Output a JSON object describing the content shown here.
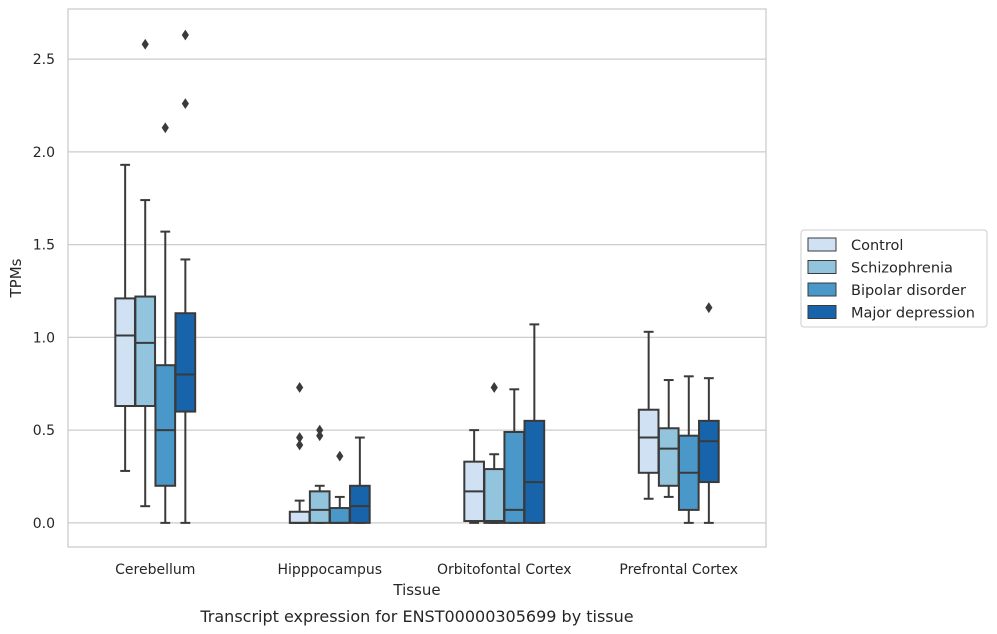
{
  "caption": "Transcript expression for ENST00000305699 by tissue",
  "colors": {
    "Control": "#cfe1f2",
    "Schizophrenia": "#93c4de",
    "Bipolar disorder": "#4a98c9",
    "Major depression": "#1764ab",
    "outline": "#3a3a3a",
    "grid": "#cccccc"
  },
  "chart_data": {
    "type": "box",
    "xlabel": "Tissue",
    "ylabel": "TPMs",
    "ylim": [
      -0.13,
      2.77
    ],
    "yticks": [
      0.0,
      0.5,
      1.0,
      1.5,
      2.0,
      2.5
    ],
    "ytick_labels": [
      "0.0",
      "0.5",
      "1.0",
      "1.5",
      "2.0",
      "2.5"
    ],
    "grid": "horizontal",
    "legend_position": "right",
    "categories": [
      "Cerebellum",
      "Hipppocampus",
      "Orbitofontal Cortex",
      "Prefrontal Cortex"
    ],
    "series": [
      {
        "name": "Control",
        "boxes": [
          {
            "whislo": 0.28,
            "q1": 0.63,
            "med": 1.01,
            "q3": 1.21,
            "whishi": 1.93,
            "fliers": []
          },
          {
            "whislo": 0.0,
            "q1": 0.0,
            "med": 0.0,
            "q3": 0.06,
            "whishi": 0.12,
            "fliers": [
              0.42,
              0.46,
              0.73
            ]
          },
          {
            "whislo": 0.0,
            "q1": 0.01,
            "med": 0.17,
            "q3": 0.33,
            "whishi": 0.5,
            "fliers": []
          },
          {
            "whislo": 0.13,
            "q1": 0.27,
            "med": 0.46,
            "q3": 0.61,
            "whishi": 1.03,
            "fliers": []
          }
        ]
      },
      {
        "name": "Schizophrenia",
        "boxes": [
          {
            "whislo": 0.09,
            "q1": 0.63,
            "med": 0.97,
            "q3": 1.22,
            "whishi": 1.74,
            "fliers": [
              2.58
            ]
          },
          {
            "whislo": 0.0,
            "q1": 0.0,
            "med": 0.07,
            "q3": 0.17,
            "whishi": 0.2,
            "fliers": [
              0.47,
              0.5
            ]
          },
          {
            "whislo": 0.0,
            "q1": 0.0,
            "med": 0.01,
            "q3": 0.29,
            "whishi": 0.37,
            "fliers": [
              0.73
            ]
          },
          {
            "whislo": 0.14,
            "q1": 0.2,
            "med": 0.4,
            "q3": 0.51,
            "whishi": 0.77,
            "fliers": []
          }
        ]
      },
      {
        "name": "Bipolar disorder",
        "boxes": [
          {
            "whislo": 0.0,
            "q1": 0.2,
            "med": 0.5,
            "q3": 0.85,
            "whishi": 1.57,
            "fliers": [
              2.13
            ]
          },
          {
            "whislo": 0.0,
            "q1": 0.0,
            "med": 0.0,
            "q3": 0.08,
            "whishi": 0.14,
            "fliers": [
              0.36
            ]
          },
          {
            "whislo": 0.0,
            "q1": 0.0,
            "med": 0.07,
            "q3": 0.49,
            "whishi": 0.72,
            "fliers": []
          },
          {
            "whislo": 0.0,
            "q1": 0.07,
            "med": 0.27,
            "q3": 0.47,
            "whishi": 0.79,
            "fliers": []
          }
        ]
      },
      {
        "name": "Major depression",
        "boxes": [
          {
            "whislo": 0.0,
            "q1": 0.6,
            "med": 0.8,
            "q3": 1.13,
            "whishi": 1.42,
            "fliers": [
              2.26,
              2.63
            ]
          },
          {
            "whislo": 0.0,
            "q1": 0.0,
            "med": 0.09,
            "q3": 0.2,
            "whishi": 0.46,
            "fliers": []
          },
          {
            "whislo": 0.0,
            "q1": 0.0,
            "med": 0.22,
            "q3": 0.55,
            "whishi": 1.07,
            "fliers": []
          },
          {
            "whislo": 0.0,
            "q1": 0.22,
            "med": 0.44,
            "q3": 0.55,
            "whishi": 0.78,
            "fliers": [
              1.16
            ]
          }
        ]
      }
    ]
  }
}
